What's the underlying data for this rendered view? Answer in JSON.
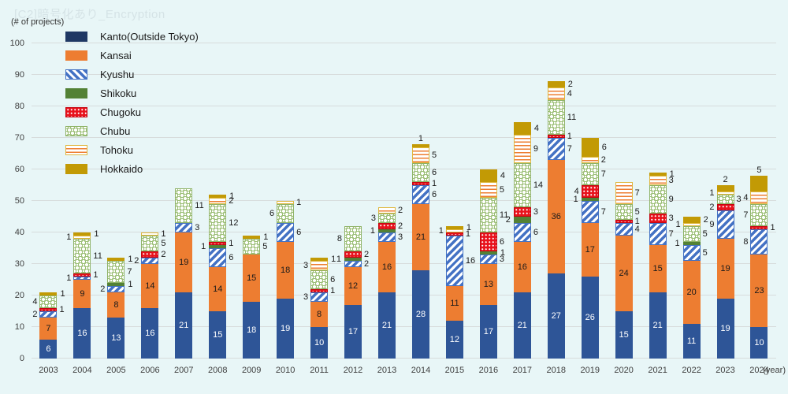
{
  "title": {
    "text": "[C2]暗号化あり_Encryption"
  },
  "y_axis": {
    "label": "(# of projects)",
    "ticks": [
      0,
      10,
      20,
      30,
      40,
      50,
      60,
      70,
      80,
      90,
      100
    ],
    "max": 100
  },
  "x_axis": {
    "unit_label": "(year)"
  },
  "colors": {
    "background": "#E8F6F7",
    "gridline": "#D7DCDC",
    "kanto_legend": "#1F3864",
    "kanto": "#2E5597",
    "kansai": "#ED7D31",
    "kyushu_stripe": "#4472C4",
    "shikoku": "#538135",
    "chugoku": "#E8121C",
    "chubu": "#9CBF77",
    "tohoku_line": "#ED7D31",
    "hokkaido": "#C29A05"
  },
  "chart_data": {
    "type": "bar",
    "stacked": true,
    "title": "[C2]暗号化あり_Encryption",
    "ylabel": "(# of projects)",
    "xlabel": "(year)",
    "ylim": [
      0,
      100
    ],
    "grid": true,
    "legend_position": "top-left",
    "categories": [
      "2003",
      "2004",
      "2005",
      "2006",
      "2007",
      "2008",
      "2009",
      "2010",
      "2011",
      "2012",
      "2013",
      "2014",
      "2015",
      "2016",
      "2017",
      "2018",
      "2019",
      "2020",
      "2021",
      "2022",
      "2023",
      "2024"
    ],
    "series": [
      {
        "name": "Kanto(Outside Tokyo)",
        "key": "kanto",
        "color": "#2E5597",
        "label_color": "white",
        "values": [
          6,
          16,
          13,
          16,
          21,
          15,
          18,
          19,
          10,
          17,
          21,
          28,
          12,
          17,
          21,
          27,
          26,
          15,
          21,
          11,
          19,
          10
        ],
        "label_sides": [
          "in",
          "in",
          "in",
          "in",
          "in",
          "in",
          "in",
          "in",
          "in",
          "in",
          "in",
          "in",
          "in",
          "in",
          "in",
          "in",
          "in",
          "in",
          "in",
          "in",
          "in",
          "in"
        ]
      },
      {
        "name": "Kansai",
        "key": "kansai",
        "color": "#ED7D31",
        "label_color": "black",
        "values": [
          7,
          9,
          8,
          14,
          19,
          14,
          15,
          18,
          8,
          12,
          16,
          21,
          11,
          13,
          16,
          36,
          17,
          24,
          15,
          20,
          19,
          23
        ],
        "label_sides": [
          "in",
          "in",
          "in",
          "in",
          "in",
          "in",
          "in",
          "in",
          "in",
          "in",
          "in",
          "in",
          "in",
          "in",
          "in",
          "in",
          "in",
          "in",
          "in",
          "in",
          "in",
          "in"
        ]
      },
      {
        "name": "Kyushu",
        "key": "kyushu",
        "color": "#4472C4",
        "pattern": "diagonal-stripes",
        "values": [
          2,
          1,
          2,
          2,
          3,
          6,
          0,
          6,
          3,
          2,
          3,
          6,
          16,
          3,
          6,
          7,
          7,
          4,
          7,
          5,
          9,
          8
        ],
        "label_sides": [
          "L",
          "L",
          "L",
          "L",
          "R",
          "R",
          "",
          "R",
          "L",
          "R",
          "R",
          "R",
          "R",
          "R",
          "R",
          "R",
          "R",
          "R",
          "R",
          "R",
          "L",
          "L"
        ]
      },
      {
        "name": "Shikoku",
        "key": "shikoku",
        "color": "#538135",
        "values": [
          0,
          0,
          1,
          0,
          0,
          1,
          0,
          0,
          0,
          1,
          1,
          0,
          0,
          1,
          2,
          0,
          1,
          0,
          0,
          1,
          0,
          0
        ],
        "label_sides": [
          "",
          "",
          "R",
          "",
          "",
          "L",
          "",
          "",
          "",
          "L",
          "L",
          "",
          "",
          "R",
          "L",
          "",
          "L",
          "",
          "",
          "L",
          "",
          ""
        ]
      },
      {
        "name": "Chugoku",
        "key": "chugoku",
        "color": "#E8121C",
        "pattern": "white-dots",
        "values": [
          1,
          1,
          0,
          2,
          0,
          1,
          0,
          0,
          1,
          2,
          2,
          1,
          1,
          6,
          3,
          1,
          4,
          1,
          3,
          0,
          2,
          1
        ],
        "label_sides": [
          "R",
          "R",
          "",
          "R",
          "",
          "R",
          "",
          "",
          "R",
          "R",
          "R",
          "R",
          "R",
          "R",
          "R",
          "R",
          "L",
          "R",
          "R",
          "",
          "L",
          "R"
        ]
      },
      {
        "name": "Chubu",
        "key": "chubu",
        "color": "#9CBF77",
        "pattern": "rings",
        "values": [
          4,
          11,
          7,
          5,
          11,
          12,
          5,
          6,
          6,
          8,
          3,
          6,
          0,
          11,
          14,
          11,
          7,
          5,
          9,
          5,
          3,
          7
        ],
        "label_sides": [
          "L",
          "R",
          "R",
          "R",
          "R",
          "R",
          "R",
          "L",
          "R",
          "L",
          "L",
          "R",
          "",
          "R",
          "R",
          "R",
          "R",
          "R",
          "R",
          "R",
          "R",
          "L"
        ]
      },
      {
        "name": "Tohoku",
        "key": "tohoku",
        "color": "#ED7D31",
        "pattern": "horizontal-lines",
        "values": [
          0,
          1,
          0,
          1,
          0,
          2,
          0,
          1,
          3,
          0,
          2,
          5,
          1,
          5,
          9,
          4,
          2,
          7,
          3,
          1,
          1,
          4
        ],
        "label_sides": [
          "",
          "L",
          "",
          "R",
          "",
          "R",
          "",
          "R",
          "L",
          "",
          "R",
          "R",
          "L",
          "R",
          "R",
          "R",
          "R",
          "R",
          "R",
          "L",
          "L",
          "L"
        ]
      },
      {
        "name": "Hokkaido",
        "key": "hokkaido",
        "color": "#C29A05",
        "values": [
          1,
          1,
          1,
          0,
          0,
          1,
          1,
          0,
          1,
          0,
          0,
          1,
          1,
          4,
          4,
          2,
          6,
          0,
          1,
          2,
          2,
          5
        ],
        "label_sides": [
          "R",
          "R",
          "R",
          "",
          "",
          "R",
          "R",
          "",
          "R",
          "",
          "",
          "T",
          "R",
          "R",
          "R",
          "R",
          "R",
          "",
          "R",
          "R",
          "T",
          "T"
        ]
      }
    ],
    "totals": [
      21,
      40,
      32,
      40,
      54,
      52,
      39,
      50,
      32,
      42,
      48,
      68,
      42,
      60,
      75,
      88,
      70,
      56,
      59,
      45,
      55,
      58
    ]
  }
}
